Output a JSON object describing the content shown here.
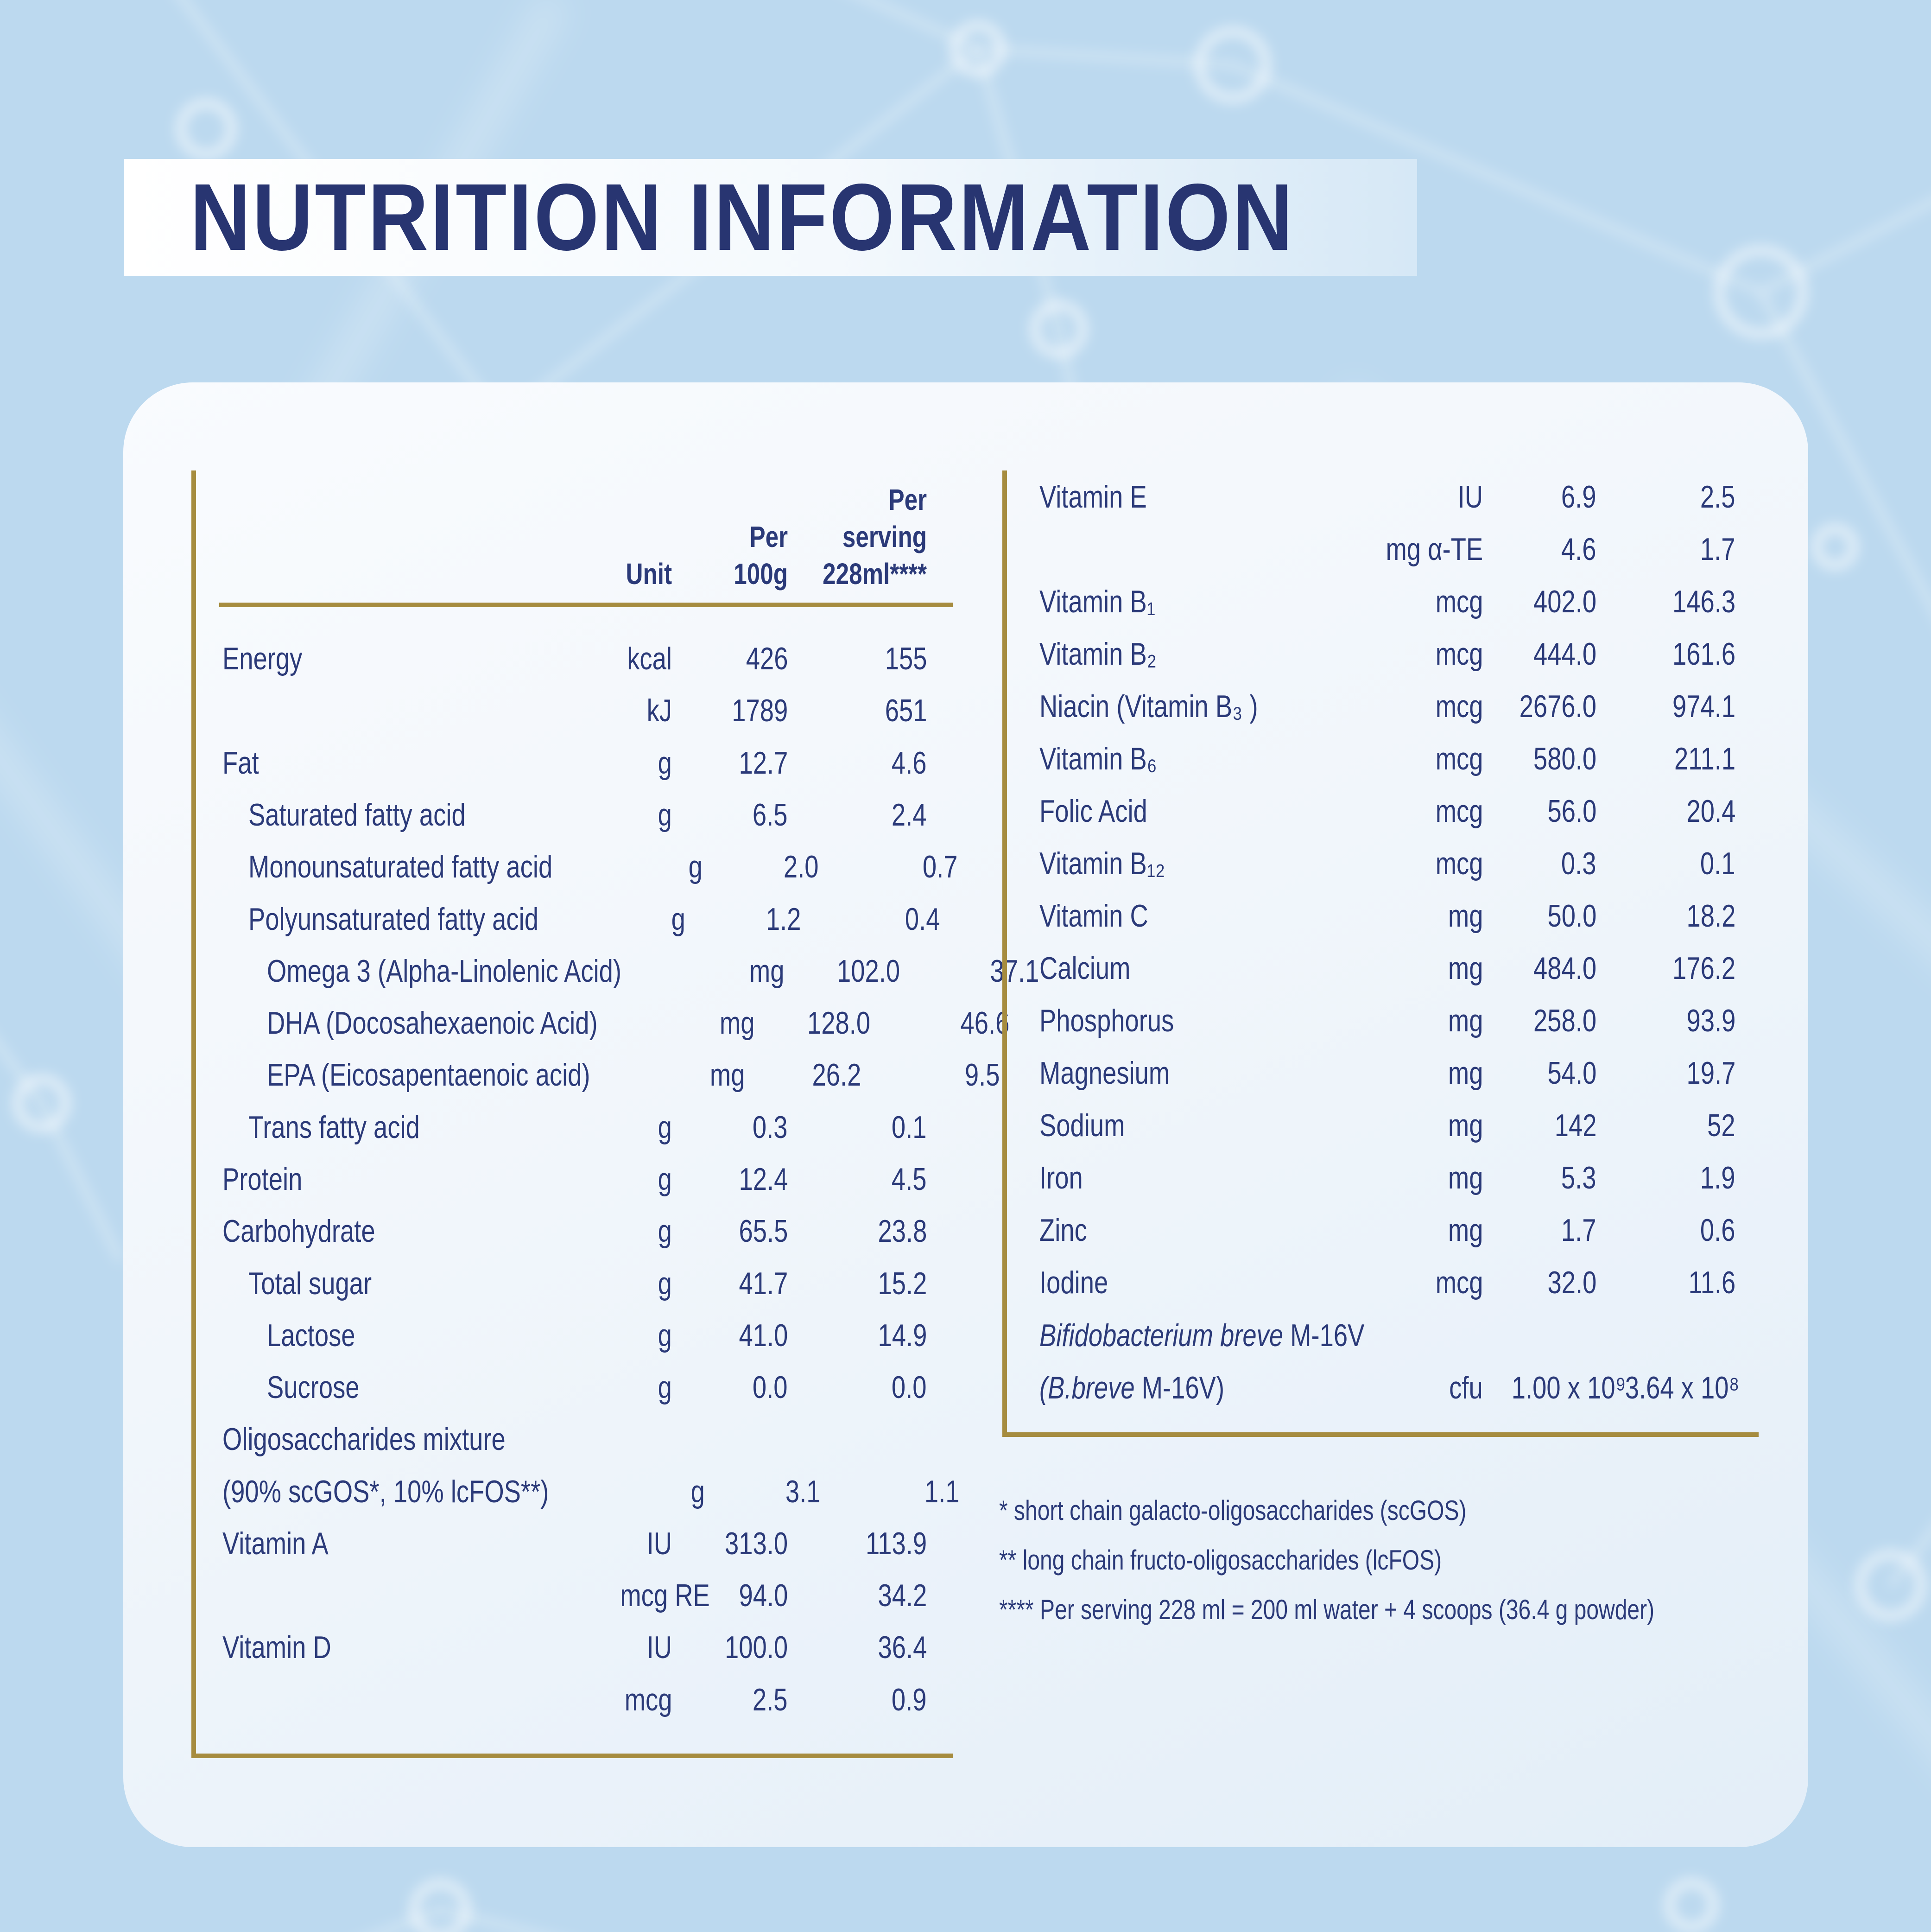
{
  "page": {
    "title": "NUTRITION INFORMATION"
  },
  "colors": {
    "accent_navy": "#283571",
    "text_navy": "#2b3a79",
    "gold_rule": "#a68c3f",
    "background_blue": "#bcd9ef",
    "card_tint": "#f2f6fb"
  },
  "left_table": {
    "header": {
      "unit": "Unit",
      "per100g_l1": "Per",
      "per100g_l2": "100g",
      "serving_l1": "Per",
      "serving_l2": "serving",
      "serving_l3": "228ml****"
    },
    "rows": [
      {
        "indent": 0,
        "label": "Energy",
        "unit": "kcal",
        "per100g": "426",
        "serving": "155"
      },
      {
        "indent": 0,
        "label": "",
        "unit": "kJ",
        "per100g": "1789",
        "serving": "651"
      },
      {
        "indent": 0,
        "label": "Fat",
        "unit": "g",
        "per100g": "12.7",
        "serving": "4.6"
      },
      {
        "indent": 1,
        "label": "Saturated fatty acid",
        "unit": "g",
        "per100g": "6.5",
        "serving": "2.4"
      },
      {
        "indent": 1,
        "label": "Monounsaturated fatty acid",
        "unit": "g",
        "per100g": "2.0",
        "serving": "0.7"
      },
      {
        "indent": 1,
        "label": "Polyunsaturated fatty acid",
        "unit": "g",
        "per100g": "1.2",
        "serving": "0.4"
      },
      {
        "indent": 2,
        "label": "Omega 3 (Alpha-Linolenic Acid)",
        "unit": "mg",
        "per100g": "102.0",
        "serving": "37.1"
      },
      {
        "indent": 2,
        "label": "DHA (Docosahexaenoic Acid)",
        "unit": "mg",
        "per100g": "128.0",
        "serving": "46.6"
      },
      {
        "indent": 2,
        "label": "EPA (Eicosapentaenoic acid)",
        "unit": "mg",
        "per100g": "26.2",
        "serving": "9.5"
      },
      {
        "indent": 1,
        "label": "Trans fatty acid",
        "unit": "g",
        "per100g": "0.3",
        "serving": "0.1"
      },
      {
        "indent": 0,
        "label": "Protein",
        "unit": "g",
        "per100g": "12.4",
        "serving": "4.5"
      },
      {
        "indent": 0,
        "label": "Carbohydrate",
        "unit": "g",
        "per100g": "65.5",
        "serving": "23.8"
      },
      {
        "indent": 1,
        "label": "Total sugar",
        "unit": "g",
        "per100g": "41.7",
        "serving": "15.2"
      },
      {
        "indent": 2,
        "label": "Lactose",
        "unit": "g",
        "per100g": "41.0",
        "serving": "14.9"
      },
      {
        "indent": 2,
        "label": "Sucrose",
        "unit": "g",
        "per100g": "0.0",
        "serving": "0.0"
      },
      {
        "indent": 0,
        "label": "Oligosaccharides mixture",
        "unit": "",
        "per100g": "",
        "serving": ""
      },
      {
        "indent": 0,
        "label": "(90% scGOS*, 10% lcFOS**)",
        "unit": "g",
        "per100g": "3.1",
        "serving": "1.1"
      },
      {
        "indent": 0,
        "label": "Vitamin A",
        "unit": "IU",
        "per100g": "313.0",
        "serving": "113.9"
      },
      {
        "indent": 0,
        "label": "",
        "unit": "mcg RE",
        "per100g": "94.0",
        "serving": "34.2"
      },
      {
        "indent": 0,
        "label": "Vitamin D",
        "unit": "IU",
        "per100g": "100.0",
        "serving": "36.4"
      },
      {
        "indent": 0,
        "label": "",
        "unit": "mcg",
        "per100g": "2.5",
        "serving": "0.9"
      }
    ]
  },
  "right_table": {
    "rows": [
      {
        "label": "Vitamin E",
        "unit": "IU",
        "per100g": "6.9",
        "serving": "2.5"
      },
      {
        "label": "",
        "unit": "mg α-TE",
        "per100g": "4.6",
        "serving": "1.7"
      },
      {
        "label": "Vitamin B₁",
        "unit": "mcg",
        "per100g": "402.0",
        "serving": "146.3"
      },
      {
        "label": "Vitamin B₂",
        "unit": "mcg",
        "per100g": "444.0",
        "serving": "161.6"
      },
      {
        "label": "Niacin (Vitamin B₃ )",
        "unit": "mcg",
        "per100g": "2676.0",
        "serving": "974.1"
      },
      {
        "label": "Vitamin B₆",
        "unit": "mcg",
        "per100g": "580.0",
        "serving": "211.1"
      },
      {
        "label": "Folic Acid",
        "unit": "mcg",
        "per100g": "56.0",
        "serving": "20.4"
      },
      {
        "label": "Vitamin B₁₂",
        "unit": "mcg",
        "per100g": "0.3",
        "serving": "0.1"
      },
      {
        "label": "Vitamin C",
        "unit": "mg",
        "per100g": "50.0",
        "serving": "18.2"
      },
      {
        "label": "Calcium",
        "unit": "mg",
        "per100g": "484.0",
        "serving": "176.2"
      },
      {
        "label": "Phosphorus",
        "unit": "mg",
        "per100g": "258.0",
        "serving": "93.9"
      },
      {
        "label": "Magnesium",
        "unit": "mg",
        "per100g": "54.0",
        "serving": "19.7"
      },
      {
        "label": "Sodium",
        "unit": "mg",
        "per100g": "142",
        "serving": "52"
      },
      {
        "label": "Iron",
        "unit": "mg",
        "per100g": "5.3",
        "serving": "1.9"
      },
      {
        "label": "Zinc",
        "unit": "mg",
        "per100g": "1.7",
        "serving": "0.6"
      },
      {
        "label": "Iodine",
        "unit": "mcg",
        "per100g": "32.0",
        "serving": "11.6"
      },
      {
        "italic": "Bifidobacterium breve",
        "label": " M-16V",
        "unit": "",
        "per100g": "",
        "serving": ""
      },
      {
        "italic": "(B.breve",
        "label": " M-16V)",
        "unit": "cfu",
        "per100g": "1.00 x 10⁹",
        "serving": "3.64 x 10⁸"
      }
    ]
  },
  "footnotes": [
    "* short chain galacto-oligosaccharides (scGOS)",
    "** long chain fructo-oligosaccharides (lcFOS)",
    "**** Per serving 228 ml = 200 ml water + 4 scoops (36.4 g powder)"
  ]
}
